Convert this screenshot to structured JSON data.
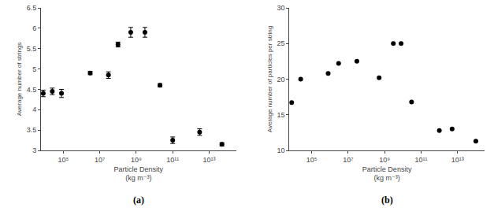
{
  "chart_data": [
    {
      "type": "scatter",
      "x": [
        8000.0,
        25000.0,
        80000.0,
        3000000.0,
        30000000.0,
        100000000.0,
        500000000.0,
        3000000000.0,
        20000000000.0,
        100000000000.0,
        3000000000000.0,
        50000000000000.0
      ],
      "values": [
        4.4,
        4.45,
        4.4,
        4.9,
        4.85,
        5.6,
        5.9,
        5.9,
        4.6,
        3.25,
        3.45,
        3.15
      ],
      "yerr": [
        0.08,
        0.08,
        0.1,
        0.04,
        0.08,
        0.06,
        0.12,
        0.12,
        0.04,
        0.08,
        0.08,
        0.04
      ],
      "ylabel": "Average number of strings",
      "xlabel": "Particle Density\n(kg m⁻³)",
      "annotation": "(a)",
      "log": "x",
      "xlim": [
        6000.0,
        300000000000000.0
      ],
      "xticks": [
        {
          "value": 100000.0,
          "label": "10⁵"
        },
        {
          "value": 10000000.0,
          "label": "10⁷"
        },
        {
          "value": 1000000000.0,
          "label": "10⁹"
        },
        {
          "value": 100000000000.0,
          "label": "10¹¹"
        },
        {
          "value": 10000000000000.0,
          "label": "10¹³"
        }
      ],
      "ylim": [
        3.0,
        6.5
      ],
      "yticks": [
        3.0,
        3.5,
        4.0,
        4.5,
        5.0,
        5.5,
        6.0,
        6.5
      ],
      "marker": "circle",
      "color": "black",
      "grid": false
    },
    {
      "type": "scatter",
      "x": [
        8000.0,
        25000.0,
        800000.0,
        3000000.0,
        30000000.0,
        500000000.0,
        3000000000.0,
        8000000000.0,
        30000000000.0,
        1000000000000.0,
        5000000000000.0,
        100000000000000.0
      ],
      "values": [
        16.7,
        20.0,
        20.8,
        22.2,
        22.5,
        20.2,
        25.0,
        25.0,
        16.8,
        12.8,
        13.0,
        11.3
      ],
      "ylabel": "Average number of particles per string",
      "xlabel": "Particle Density\n(kg m⁻³)",
      "annotation": "(b)",
      "log": "x",
      "xlim": [
        6000.0,
        300000000000000.0
      ],
      "xticks": [
        {
          "value": 100000.0,
          "label": "10⁵"
        },
        {
          "value": 10000000.0,
          "label": "10⁷"
        },
        {
          "value": 1000000000.0,
          "label": "10⁹"
        },
        {
          "value": 100000000000.0,
          "label": "10¹¹"
        },
        {
          "value": 10000000000000.0,
          "label": "10¹³"
        }
      ],
      "ylim": [
        10,
        30
      ],
      "yticks": [
        10,
        15,
        20,
        25,
        30
      ],
      "marker": "circle",
      "color": "black",
      "grid": false
    }
  ]
}
